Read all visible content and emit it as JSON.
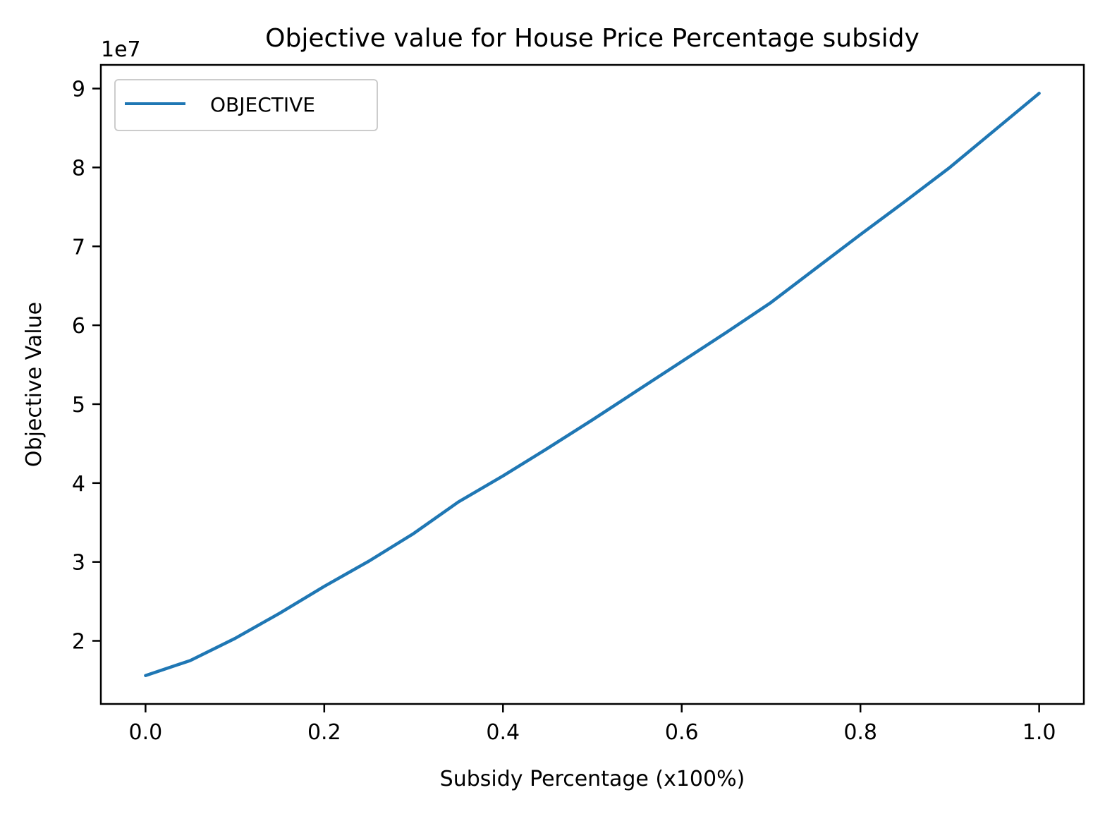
{
  "chart_data": {
    "type": "line",
    "title": "Objective value for House Price Percentage subsidy",
    "xlabel": "Subsidy Percentage (x100%)",
    "ylabel": "Objective Value",
    "y_offset_label": "1e7",
    "xlim": [
      -0.05,
      1.05
    ],
    "ylim": [
      1.2,
      9.3
    ],
    "x_ticks": [
      0.0,
      0.2,
      0.4,
      0.6,
      0.8,
      1.0
    ],
    "x_tick_labels": [
      "0.0",
      "0.2",
      "0.4",
      "0.6",
      "0.8",
      "1.0"
    ],
    "y_ticks": [
      2,
      3,
      4,
      5,
      6,
      7,
      8,
      9
    ],
    "y_tick_labels": [
      "2",
      "3",
      "4",
      "5",
      "6",
      "7",
      "8",
      "9"
    ],
    "grid": false,
    "legend_position": "top-left",
    "series": [
      {
        "name": "OBJECTIVE",
        "color": "#1f77b4",
        "x": [
          0.0,
          0.05,
          0.1,
          0.15,
          0.2,
          0.25,
          0.3,
          0.35,
          0.4,
          0.45,
          0.5,
          0.55,
          0.6,
          0.65,
          0.7,
          0.75,
          0.8,
          0.85,
          0.9,
          0.95,
          1.0
        ],
        "y": [
          1.56,
          1.75,
          2.03,
          2.35,
          2.69,
          3.01,
          3.36,
          3.76,
          4.09,
          4.44,
          4.8,
          5.17,
          5.54,
          5.91,
          6.29,
          6.72,
          7.15,
          7.57,
          8.0,
          8.47,
          8.94
        ]
      }
    ]
  }
}
